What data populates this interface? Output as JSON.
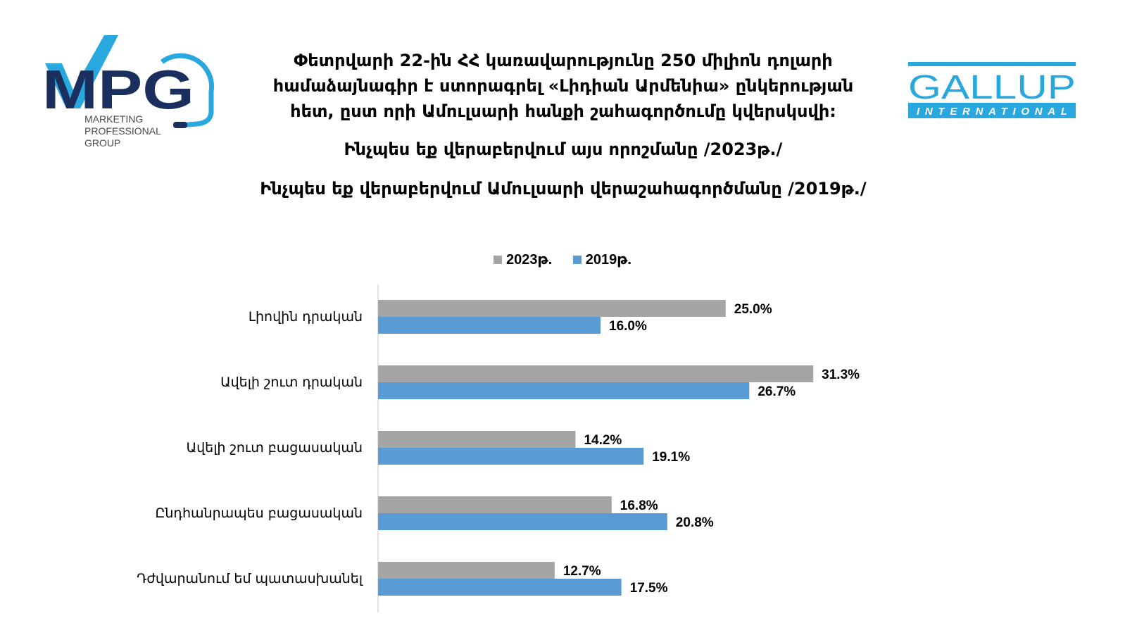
{
  "title": {
    "lines": [
      "Փետրվարի 22-ին ՀՀ կառավարությունը 250 միլիոն դոլարի",
      "համաձայնագիր է ստորագրել «Լիդիան Արմենիա» ընկերության",
      "հետ, ըստ որի Ամուլսարի հանքի շահագործումը կվերսկսվի:",
      "Ինչպես եք վերաբերվում այս որոշմանը /2023թ./",
      "Ինչպես եք վերաբերվում Ամուլսարի վերաշահագործմանը /2019թ./"
    ]
  },
  "logos": {
    "mpg": {
      "mark": "MPG",
      "text_lines": [
        "MARKETING",
        "PROFESSIONAL",
        "GROUP"
      ],
      "colors": {
        "navy": "#1b2f5e",
        "cyan": "#29a8e0"
      }
    },
    "gallup": {
      "word": "GALLUP",
      "sub": "INTERNATIONAL",
      "color": "#29a8e0"
    }
  },
  "legend": {
    "items": [
      {
        "label": "2023թ.",
        "color": "#a5a5a5"
      },
      {
        "label": "2019թ.",
        "color": "#5b9bd5"
      }
    ]
  },
  "chart_data": {
    "type": "bar",
    "orientation": "horizontal",
    "categories": [
      "Լիովին դրական",
      "Ավելի շուտ դրական",
      "Ավելի շուտ բացասական",
      "Ընդհանրապես բացասական",
      "Դժվարանում եմ պատասխանել"
    ],
    "series": [
      {
        "name": "2023թ.",
        "values": [
          25.0,
          31.3,
          14.2,
          16.8,
          12.7
        ],
        "color": "#a5a5a5"
      },
      {
        "name": "2019թ.",
        "values": [
          16.0,
          26.7,
          19.1,
          20.8,
          17.5
        ],
        "color": "#5b9bd5"
      }
    ],
    "value_suffix": "%",
    "xlim": [
      0,
      40
    ],
    "grid": false,
    "legend_position": "top"
  }
}
